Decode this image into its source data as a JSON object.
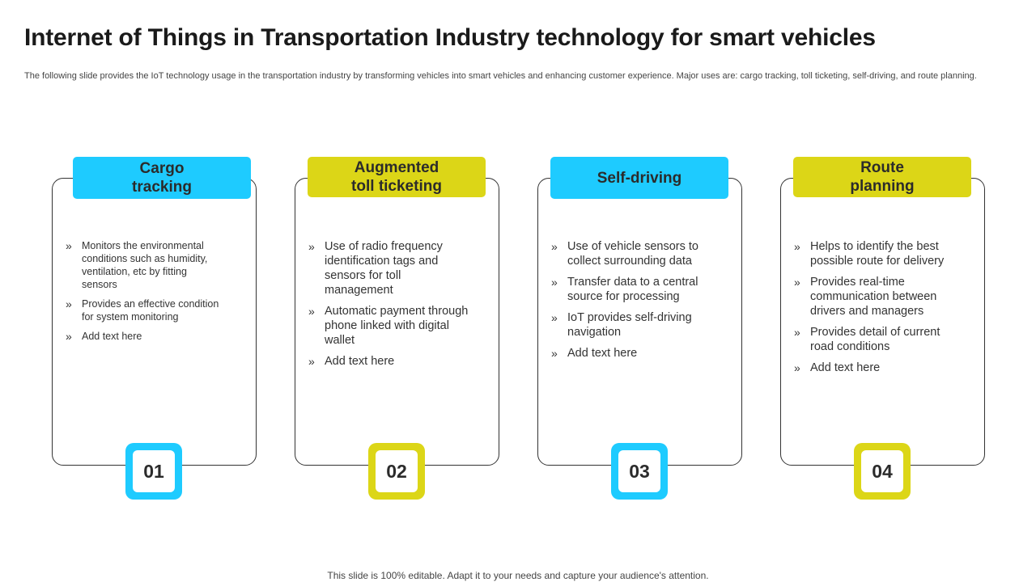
{
  "header": {
    "title": "Internet of Things in Transportation Industry technology for smart vehicles",
    "subtitle": "The following slide provides the IoT technology usage in the transportation industry by transforming vehicles into smart vehicles and enhancing customer experience. Major uses are: cargo tracking, toll ticketing, self-driving, and route planning."
  },
  "colors": {
    "blue": "#1ecbff",
    "yellow": "#dcd617"
  },
  "cards": [
    {
      "title": "Cargo\ntracking",
      "number": "01",
      "bullets": [
        "Monitors the environmental conditions such as humidity, ventilation,  etc by fitting sensors",
        "Provides  an effective condition for system monitoring",
        "Add text here"
      ]
    },
    {
      "title": "Augmented\ntoll ticketing",
      "number": "02",
      "bullets": [
        "Use of radio frequency identification tags and sensors for toll management",
        "Automatic payment through phone linked with digital wallet",
        "Add text here"
      ]
    },
    {
      "title": "Self-driving",
      "number": "03",
      "bullets": [
        "Use of vehicle sensors to collect surrounding data",
        "Transfer data to a central source for processing",
        "IoT provides self-driving navigation",
        "Add text here"
      ]
    },
    {
      "title": "Route\nplanning",
      "number": "04",
      "bullets": [
        "Helps to identify the best possible route for delivery",
        "Provides real-time communication between drivers and managers",
        "Provides detail  of current road conditions",
        "Add text here"
      ]
    }
  ],
  "footer": {
    "text": "This slide is 100% editable. Adapt it to your needs and capture your audience's attention."
  }
}
